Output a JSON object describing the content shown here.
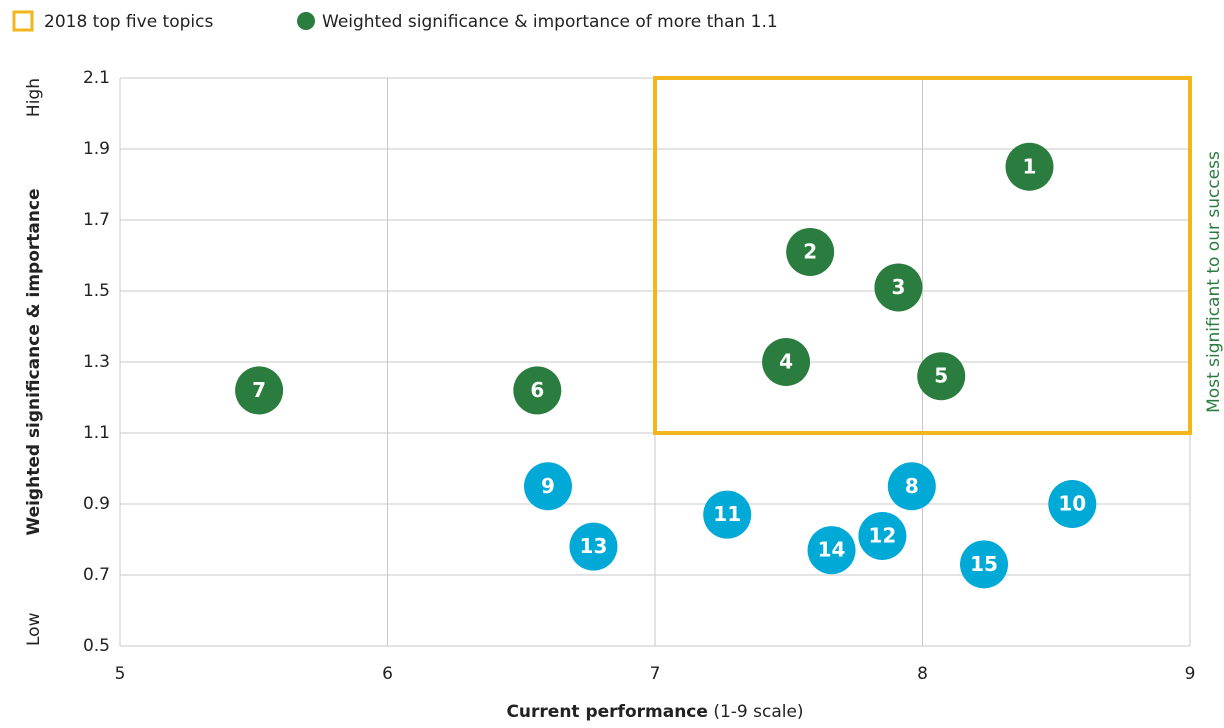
{
  "chart_data": {
    "type": "scatter",
    "legend": {
      "box_label": "2018 top five topics",
      "position": "top-left"
    },
    "ylabel": "Weighted significance & importance",
    "ylabel_high": "High",
    "ylabel_low": "Low",
    "xlabel": "Current performance",
    "xlabel_note": "(1-9 scale)",
    "right_annotation": "Most significant to our success",
    "highlight_box": {
      "x": [
        7,
        9
      ],
      "y": [
        1.1,
        2.1
      ],
      "color": "#f2b51b"
    },
    "series": [
      {
        "name": "Weighted significance & importance of more than 1.1",
        "color": "#2a7d3e",
        "labels": [
          "1",
          "2",
          "3",
          "4",
          "5",
          "6",
          "7"
        ],
        "x": [
          8.4,
          7.58,
          7.91,
          7.49,
          8.07,
          6.56,
          5.52
        ],
        "values": [
          1.85,
          1.61,
          1.51,
          1.3,
          1.26,
          1.22,
          1.22
        ]
      },
      {
        "color": "#00a9d6",
        "labels": [
          "8",
          "9",
          "10",
          "11",
          "12",
          "13",
          "14",
          "15"
        ],
        "x": [
          7.96,
          6.6,
          8.56,
          7.27,
          7.85,
          6.77,
          7.66,
          8.23
        ],
        "values": [
          0.95,
          0.95,
          0.9,
          0.87,
          0.81,
          0.78,
          0.77,
          0.73
        ]
      }
    ],
    "xlim": [
      5,
      9
    ],
    "xticks": [
      5,
      6,
      7,
      8,
      9
    ],
    "ylim": [
      0.5,
      2.1
    ],
    "yticks": [
      0.5,
      0.7,
      0.9,
      1.1,
      1.3,
      1.5,
      1.7,
      1.9,
      2.1
    ],
    "grid": true
  }
}
